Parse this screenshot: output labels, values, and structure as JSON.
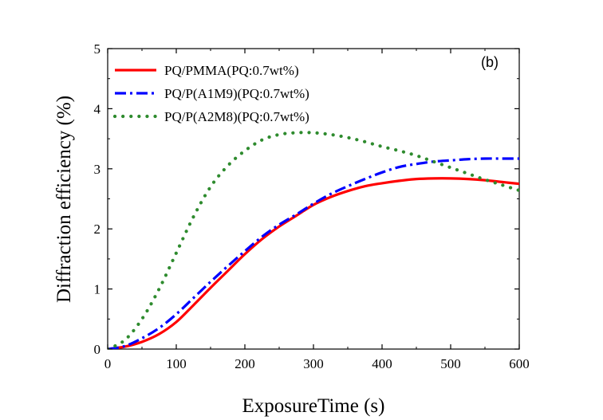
{
  "chart_data": {
    "type": "line",
    "panel_label": "(b)",
    "xlabel": "ExposureTime (s)",
    "ylabel": "Diffraction efficiency (%)",
    "xlim": [
      0,
      600
    ],
    "ylim": [
      0,
      5
    ],
    "xticks": [
      0,
      100,
      200,
      300,
      400,
      500,
      600
    ],
    "yticks": [
      0,
      1,
      2,
      3,
      4,
      5
    ],
    "grid": false,
    "legend_position": "top-left",
    "series": [
      {
        "name": "PQ/PMMA(PQ:0.7wt%)",
        "color": "#ff0000",
        "style": "solid",
        "x": [
          0,
          25,
          50,
          75,
          100,
          125,
          150,
          175,
          200,
          225,
          250,
          275,
          300,
          325,
          350,
          375,
          400,
          425,
          450,
          475,
          500,
          525,
          550,
          575,
          600
        ],
        "y": [
          0,
          0.04,
          0.12,
          0.25,
          0.45,
          0.73,
          1.02,
          1.3,
          1.58,
          1.83,
          2.04,
          2.22,
          2.4,
          2.53,
          2.63,
          2.71,
          2.76,
          2.8,
          2.83,
          2.84,
          2.84,
          2.83,
          2.81,
          2.78,
          2.75
        ]
      },
      {
        "name": "PQ/P(A1M9)(PQ:0.7wt%)",
        "color": "#0000ff",
        "style": "dashdot",
        "x": [
          0,
          25,
          50,
          75,
          100,
          125,
          150,
          175,
          200,
          225,
          250,
          275,
          300,
          325,
          350,
          375,
          400,
          425,
          450,
          475,
          500,
          525,
          550,
          575,
          600
        ],
        "y": [
          0,
          0.05,
          0.18,
          0.35,
          0.58,
          0.85,
          1.12,
          1.38,
          1.63,
          1.87,
          2.07,
          2.24,
          2.42,
          2.58,
          2.71,
          2.83,
          2.94,
          3.03,
          3.08,
          3.12,
          3.14,
          3.16,
          3.17,
          3.17,
          3.17
        ]
      },
      {
        "name": "PQ/P(A2M8)(PQ:0.7wt%)",
        "color": "#2e8b2e",
        "style": "dotted",
        "x": [
          0,
          25,
          50,
          75,
          100,
          125,
          150,
          175,
          200,
          225,
          250,
          275,
          300,
          325,
          350,
          375,
          400,
          425,
          450,
          475,
          500,
          525,
          550,
          575,
          600
        ],
        "y": [
          0,
          0.15,
          0.5,
          1.0,
          1.6,
          2.2,
          2.7,
          3.05,
          3.3,
          3.48,
          3.57,
          3.6,
          3.6,
          3.57,
          3.52,
          3.45,
          3.37,
          3.3,
          3.22,
          3.12,
          3.02,
          2.92,
          2.82,
          2.73,
          2.64
        ]
      }
    ]
  }
}
